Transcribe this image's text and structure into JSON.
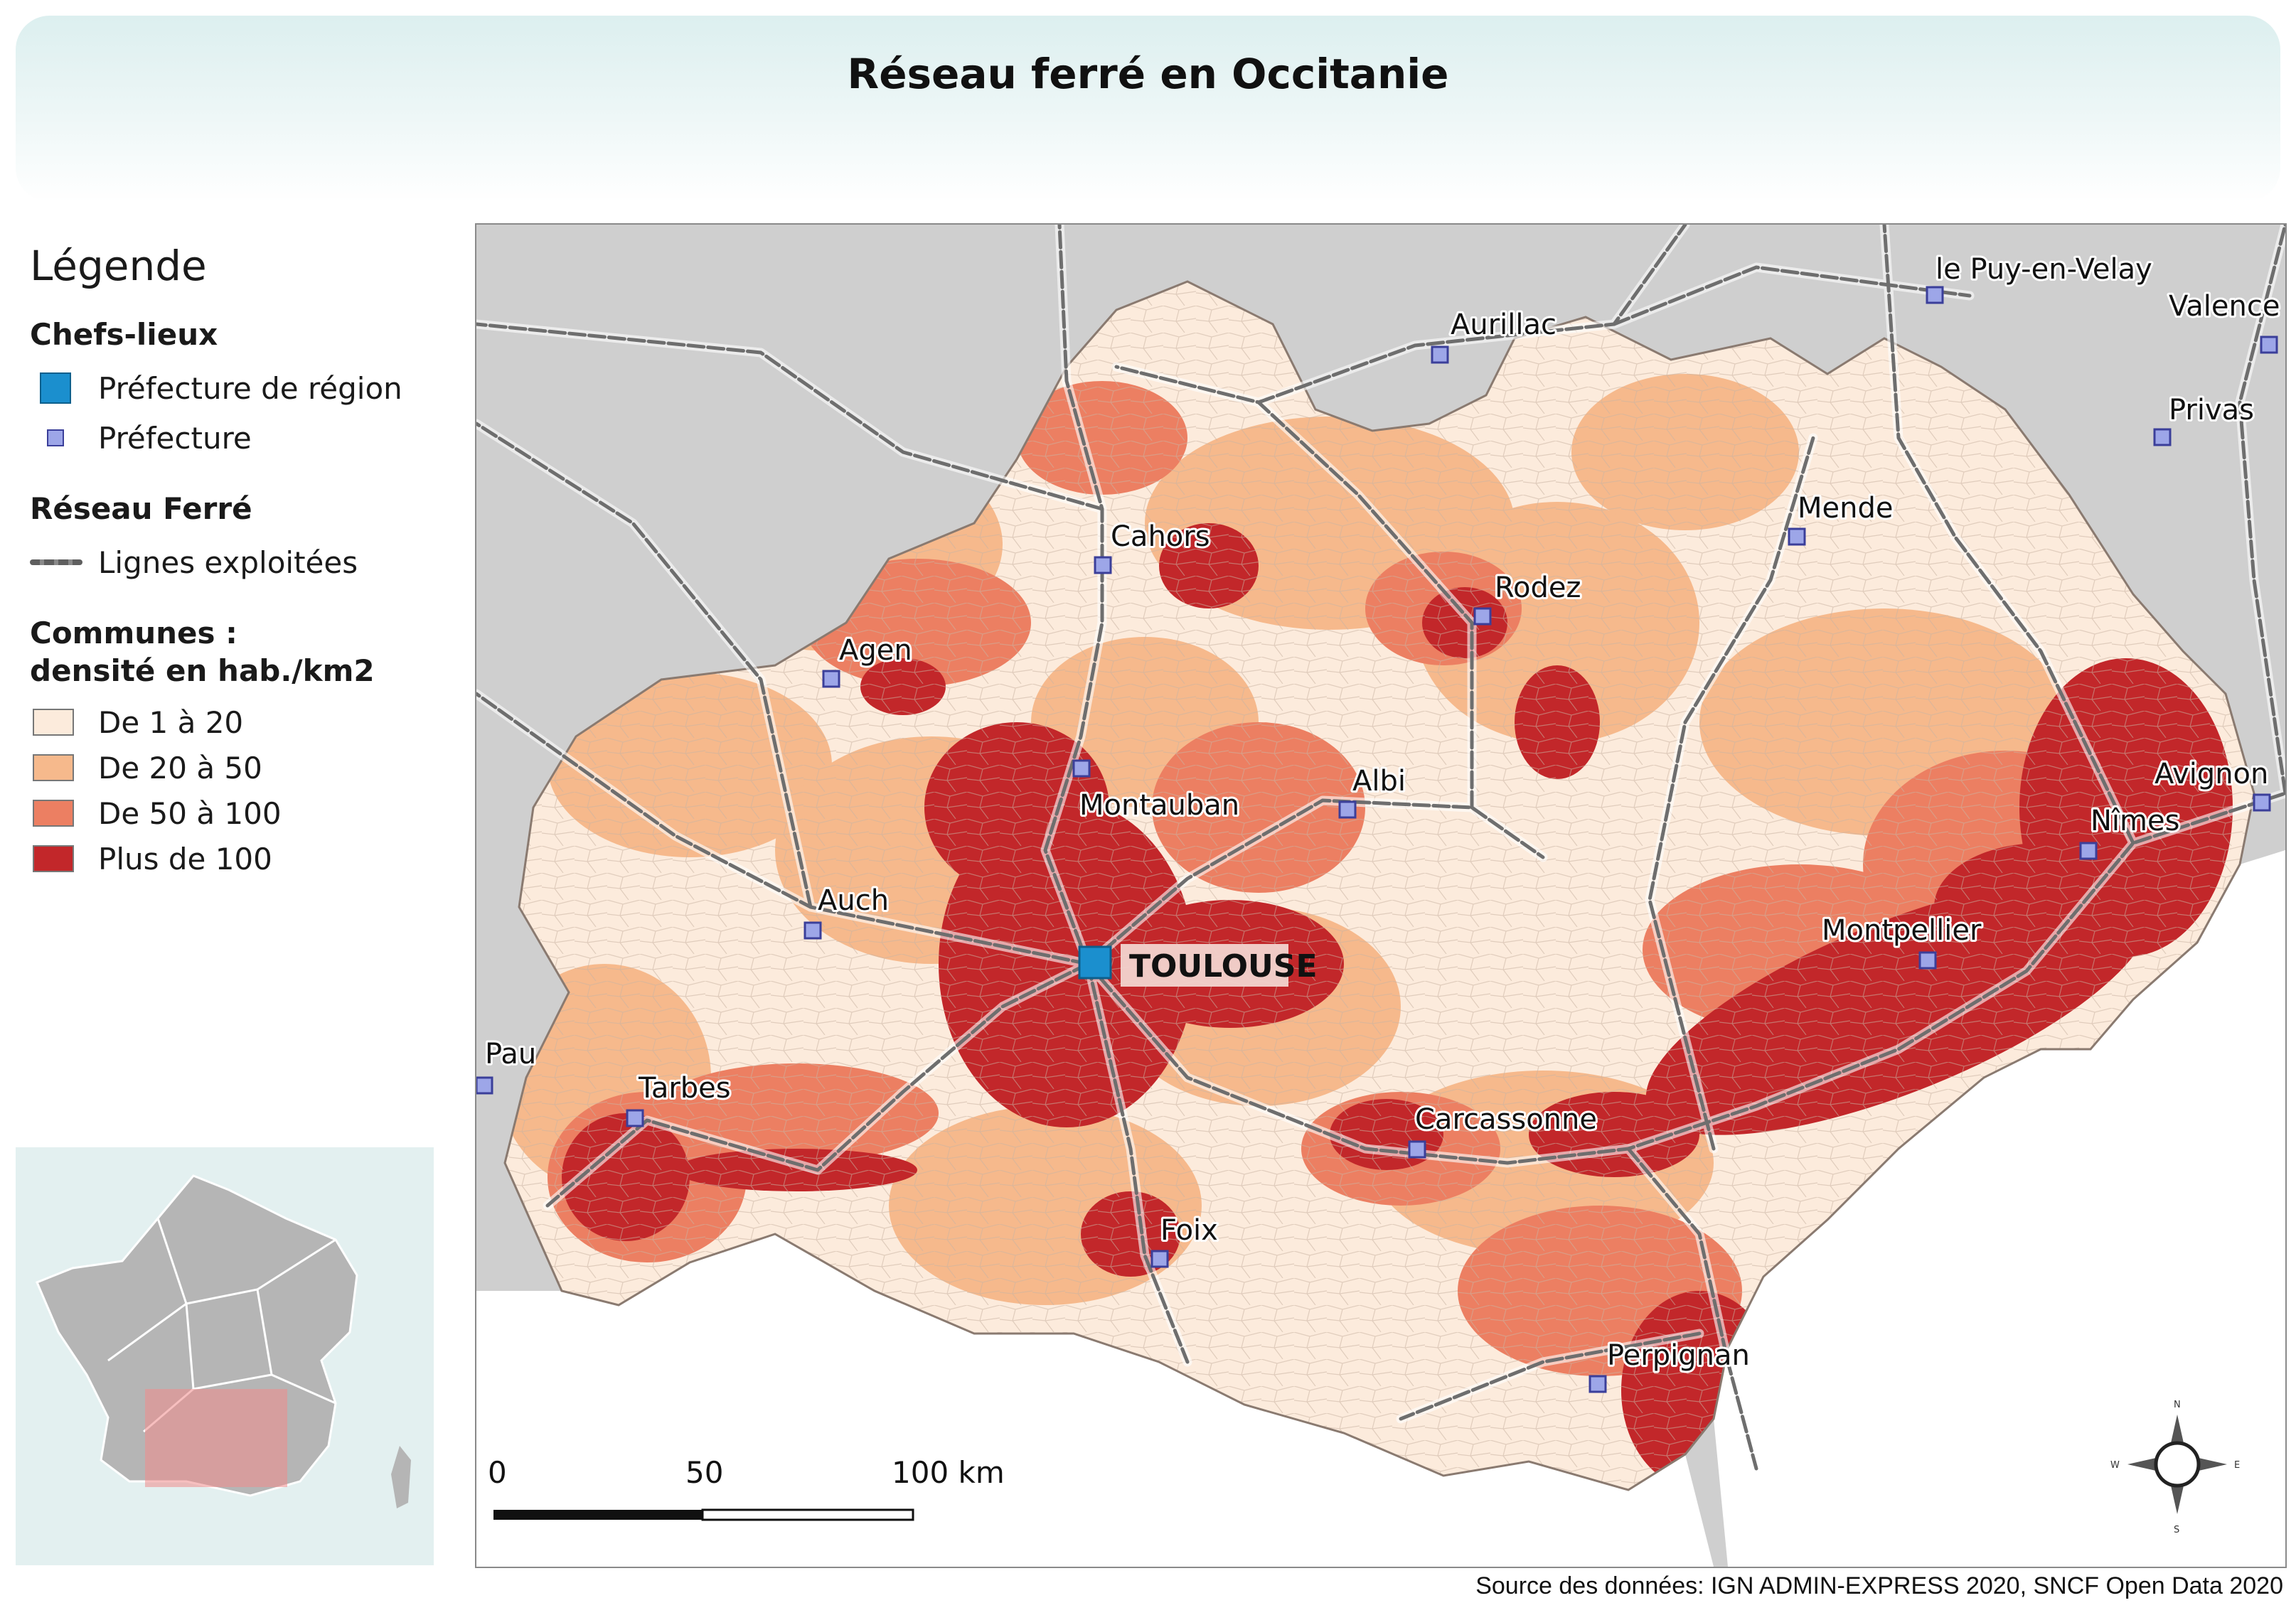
{
  "title": "Réseau ferré en Occitanie",
  "legend": {
    "title": "Légende",
    "chefs_lieux_title": "Chefs-lieux",
    "prefecture_region": "Préfecture de région",
    "prefecture": "Préfecture",
    "reseau_title": "Réseau Ferré",
    "lignes": "Lignes exploitées",
    "communes_title_1": "Communes :",
    "communes_title_2": "densité en hab./km2",
    "classes": [
      {
        "label": "De 1 à 20",
        "color": "#fcebdc"
      },
      {
        "label": "De 20 à 50",
        "color": "#f6b98c"
      },
      {
        "label": "De 50 à 100",
        "color": "#ec7f62"
      },
      {
        "label": "Plus de 100",
        "color": "#c2272a"
      }
    ]
  },
  "colors": {
    "outside_land": "#cfcfcf",
    "sea": "#ffffff",
    "rail": "#6e6e6e",
    "prefecture_region": "#1b8fce",
    "prefecture": "#9da6e8",
    "inset_bg": "#e3f0f0",
    "inset_land": "#b5b5b5",
    "inset_highlight": "#f08a8a"
  },
  "cities": {
    "toulouse": "TOULOUSE",
    "cahors": "Cahors",
    "aurillac": "Aurillac",
    "puy": "le Puy-en-Velay",
    "valence": "Valence",
    "privas": "Privas",
    "mende": "Mende",
    "rodez": "Rodez",
    "agen": "Agen",
    "montauban": "Montauban",
    "albi": "Albi",
    "avignon": "Avignon",
    "nimes": "Nîmes",
    "auch": "Auch",
    "montpellier": "Montpellier",
    "pau": "Pau",
    "tarbes": "Tarbes",
    "carcassonne": "Carcassonne",
    "foix": "Foix",
    "perpignan": "Perpignan"
  },
  "scale": {
    "zero": "0",
    "mid": "50",
    "end": "100 km"
  },
  "compass": {
    "n": "N",
    "s": "S",
    "e": "E",
    "w": "W"
  },
  "source": "Source des données: IGN ADMIN-EXPRESS 2020, SNCF Open Data 2020"
}
